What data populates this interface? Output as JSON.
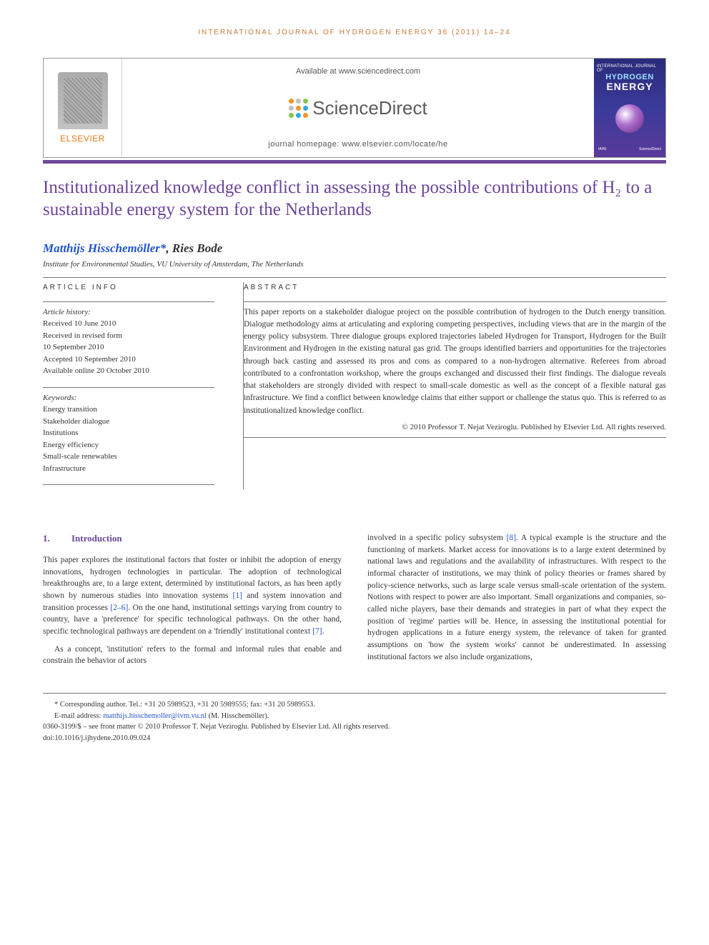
{
  "running_header": "INTERNATIONAL JOURNAL OF HYDROGEN ENERGY 36 (2011) 14–24",
  "header": {
    "elsevier_label": "ELSEVIER",
    "available_text": "Available at www.sciencedirect.com",
    "sd_brand": "ScienceDirect",
    "homepage_text": "journal homepage: www.elsevier.com/locate/he",
    "cover": {
      "line1": "INTERNATIONAL JOURNAL OF",
      "line2": "HYDROGEN",
      "line3": "ENERGY",
      "footer_left": "IAHE",
      "footer_right": "ScienceDirect"
    },
    "sd_dot_colors": [
      "#f7931e",
      "#c0c0c0",
      "#8bc34a",
      "#c0c0c0",
      "#f7931e",
      "#29abe2",
      "#8bc34a",
      "#29abe2",
      "#f7931e"
    ],
    "cover_bg": "linear-gradient(180deg, #2a2a7a 0%, #3a3a9a 50%, #5a3a9a 100%)"
  },
  "colors": {
    "accent_orange": "#c77a3a",
    "title_purple": "#6a449a",
    "bar_purple": "#704a9a",
    "link_blue": "#2255cc",
    "elsevier_orange": "#e67817"
  },
  "article": {
    "title": "Institutionalized knowledge conflict in assessing the possible contributions of H₂ to a sustainable energy system for the Netherlands",
    "authors_html": "Matthijs Hisschemöller*, Ries Bode",
    "author1": "Matthijs Hisschemöller",
    "author_sep": ", ",
    "author2": "Ries Bode",
    "corr_mark": "*",
    "affiliation": "Institute for Environmental Studies, VU University of Amsterdam, The Netherlands"
  },
  "info": {
    "heading": "ARTICLE INFO",
    "history_label": "Article history:",
    "history": [
      "Received 10 June 2010",
      "Received in revised form",
      "10 September 2010",
      "Accepted 10 September 2010",
      "Available online 20 October 2010"
    ],
    "keywords_label": "Keywords:",
    "keywords": [
      "Energy transition",
      "Stakeholder dialogue",
      "Institutions",
      "Energy efficiency",
      "Small-scale renewables",
      "Infrastructure"
    ]
  },
  "abstract": {
    "heading": "ABSTRACT",
    "text": "This paper reports on a stakeholder dialogue project on the possible contribution of hydrogen to the Dutch energy transition. Dialogue methodology aims at articulating and exploring competing perspectives, including views that are in the margin of the energy policy subsystem. Three dialogue groups explored trajectories labeled Hydrogen for Transport, Hydrogen for the Built Environment and Hydrogen in the existing natural gas grid. The groups identified barriers and opportunities for the trajectories through back casting and assessed its pros and cons as compared to a non-hydrogen alternative. Referees from abroad contributed to a confrontation workshop, where the groups exchanged and discussed their first findings. The dialogue reveals that stakeholders are strongly divided with respect to small-scale domestic as well as the concept of a flexible natural gas infrastructure. We find a conflict between knowledge claims that either support or challenge the status quo. This is referred to as institutionalized knowledge conflict.",
    "copyright": "© 2010 Professor T. Nejat Veziroglu. Published by Elsevier Ltd. All rights reserved."
  },
  "body": {
    "section_num": "1.",
    "section_title": "Introduction",
    "col1_p1": "This paper explores the institutional factors that foster or inhibit the adoption of energy innovations, hydrogen technologies in particular. The adoption of technological breakthroughs are, to a large extent, determined by institutional factors, as has been aptly shown by numerous studies into innovation systems [1] and system innovation and transition processes [2–6]. On the one hand, institutional settings varying from country to country, have a 'preference' for specific technological pathways. On the other hand, specific technological pathways are dependent on a 'friendly' institutional context [7].",
    "col1_p2": "As a concept, 'institution' refers to the formal and informal rules that enable and constrain the behavior of actors",
    "col2_p1": "involved in a specific policy subsystem [8]. A typical example is the structure and the functioning of markets. Market access for innovations is to a large extent determined by national laws and regulations and the availability of infrastructures. With respect to the informal character of institutions, we may think of policy theories or frames shared by policy-science networks, such as large scale versus small-scale orientation of the system. Notions with respect to power are also important. Small organizations and companies, so-called niche players, base their demands and strategies in part of what they expect the position of 'regime' parties will be. Hence, in assessing the institutional potential for hydrogen applications in a future energy system, the relevance of taken for granted assumptions on 'how the system works' cannot be underestimated. In assessing institutional factors we also include organizations,",
    "refs": {
      "r1": "[1]",
      "r2_6": "[2–6]",
      "r7": "[7]",
      "r8": "[8]"
    }
  },
  "footer": {
    "corr_label": "* Corresponding author.",
    "corr_detail": " Tel.: +31 20 5989523, +31 20 5989555; fax: +31 20 5989553.",
    "email_label": "E-mail address: ",
    "email": "matthijs.hisschemoller@ivm.vu.nl",
    "email_paren": " (M. Hisschemöller).",
    "issn_line": "0360-3199/$ – see front matter © 2010 Professor T. Nejat Veziroglu. Published by Elsevier Ltd. All rights reserved.",
    "doi_line": "doi:10.1016/j.ijhydene.2010.09.024"
  }
}
